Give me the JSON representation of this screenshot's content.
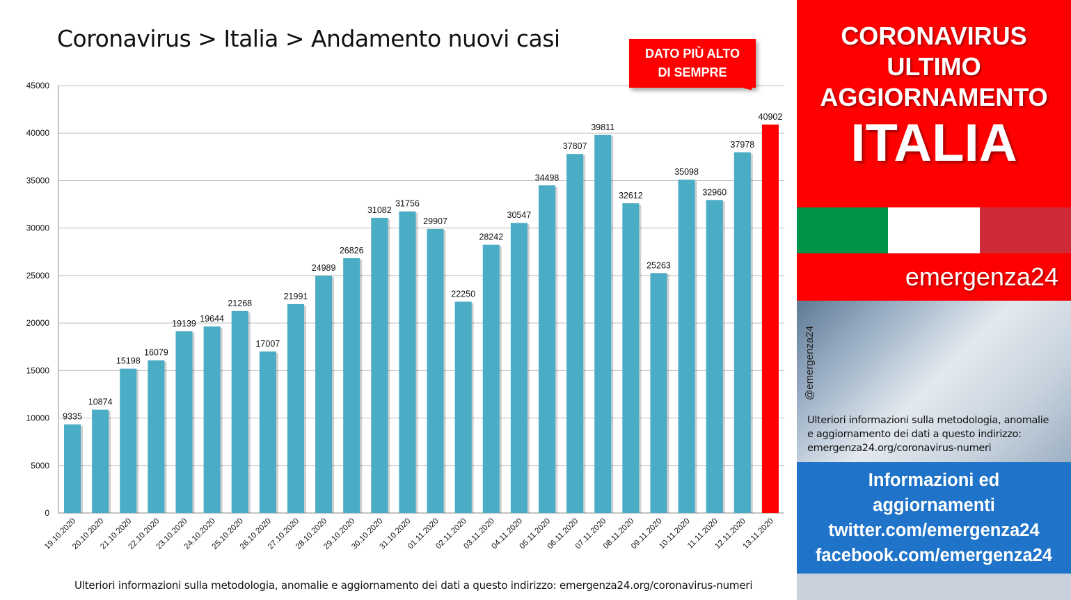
{
  "chart_data": {
    "type": "bar",
    "title": "Coronavirus > Italia > Andamento nuovi casi",
    "categories": [
      "19.10.2020",
      "20.10.2020",
      "21.10.2020",
      "22.10.2020",
      "23.10.2020",
      "24.10.2020",
      "25.10.2020",
      "26.10.2020",
      "27.10.2020",
      "28.10.2020",
      "29.10.2020",
      "30.10.2020",
      "31.10.2020",
      "01.11.2020",
      "02.11.2020",
      "03.11.2020",
      "04.11.2020",
      "05.11.2020",
      "06.11.2020",
      "07.11.2020",
      "08.11.2020",
      "09.11.2020",
      "10.11.2020",
      "11.11.2020",
      "12.11.2020",
      "13.11.2020"
    ],
    "values": [
      9335,
      10874,
      15198,
      16079,
      19139,
      19644,
      21268,
      17007,
      21991,
      24989,
      26826,
      31082,
      31756,
      29907,
      22250,
      28242,
      30547,
      34498,
      37807,
      39811,
      32612,
      25263,
      35098,
      32960,
      37978,
      40902
    ],
    "ylim": [
      0,
      45000
    ],
    "yticks": [
      0,
      5000,
      10000,
      15000,
      20000,
      25000,
      30000,
      35000,
      40000,
      45000
    ],
    "xlabel": "",
    "ylabel": "",
    "grid": true,
    "bar_color": "#4bacc6",
    "highlight_color": "#ff0000",
    "highlight_index": 25,
    "annotation": {
      "line1": "DATO PIÙ ALTO",
      "line2": "DI SEMPRE"
    }
  },
  "footer_note": "Ulteriori informazioni sulla metodologia, anomalie e aggiornamento dei dati a questo indirizzo: emergenza24.org/coronavirus-numeri",
  "side": {
    "header": {
      "line1": "CORONAVIRUS",
      "line2": "ULTIMO",
      "line3": "AGGIORNAMENTO",
      "big": "ITALIA"
    },
    "flag_colors": [
      "#009246",
      "#ffffff",
      "#ce2b37"
    ],
    "brand": "emergenza24",
    "handle": "@emergenza24",
    "note": {
      "line1": "Ulteriori informazioni sulla metodologia, anomalie",
      "line2": "e aggiornamento dei dati a questo indirizzo:",
      "line3": "emergenza24.org/coronavirus-numeri"
    },
    "info": {
      "line1": "Informazioni ed",
      "line2": "aggiornamenti",
      "line3": "twitter.com/emergenza24",
      "line4": "facebook.com/emergenza24"
    }
  }
}
